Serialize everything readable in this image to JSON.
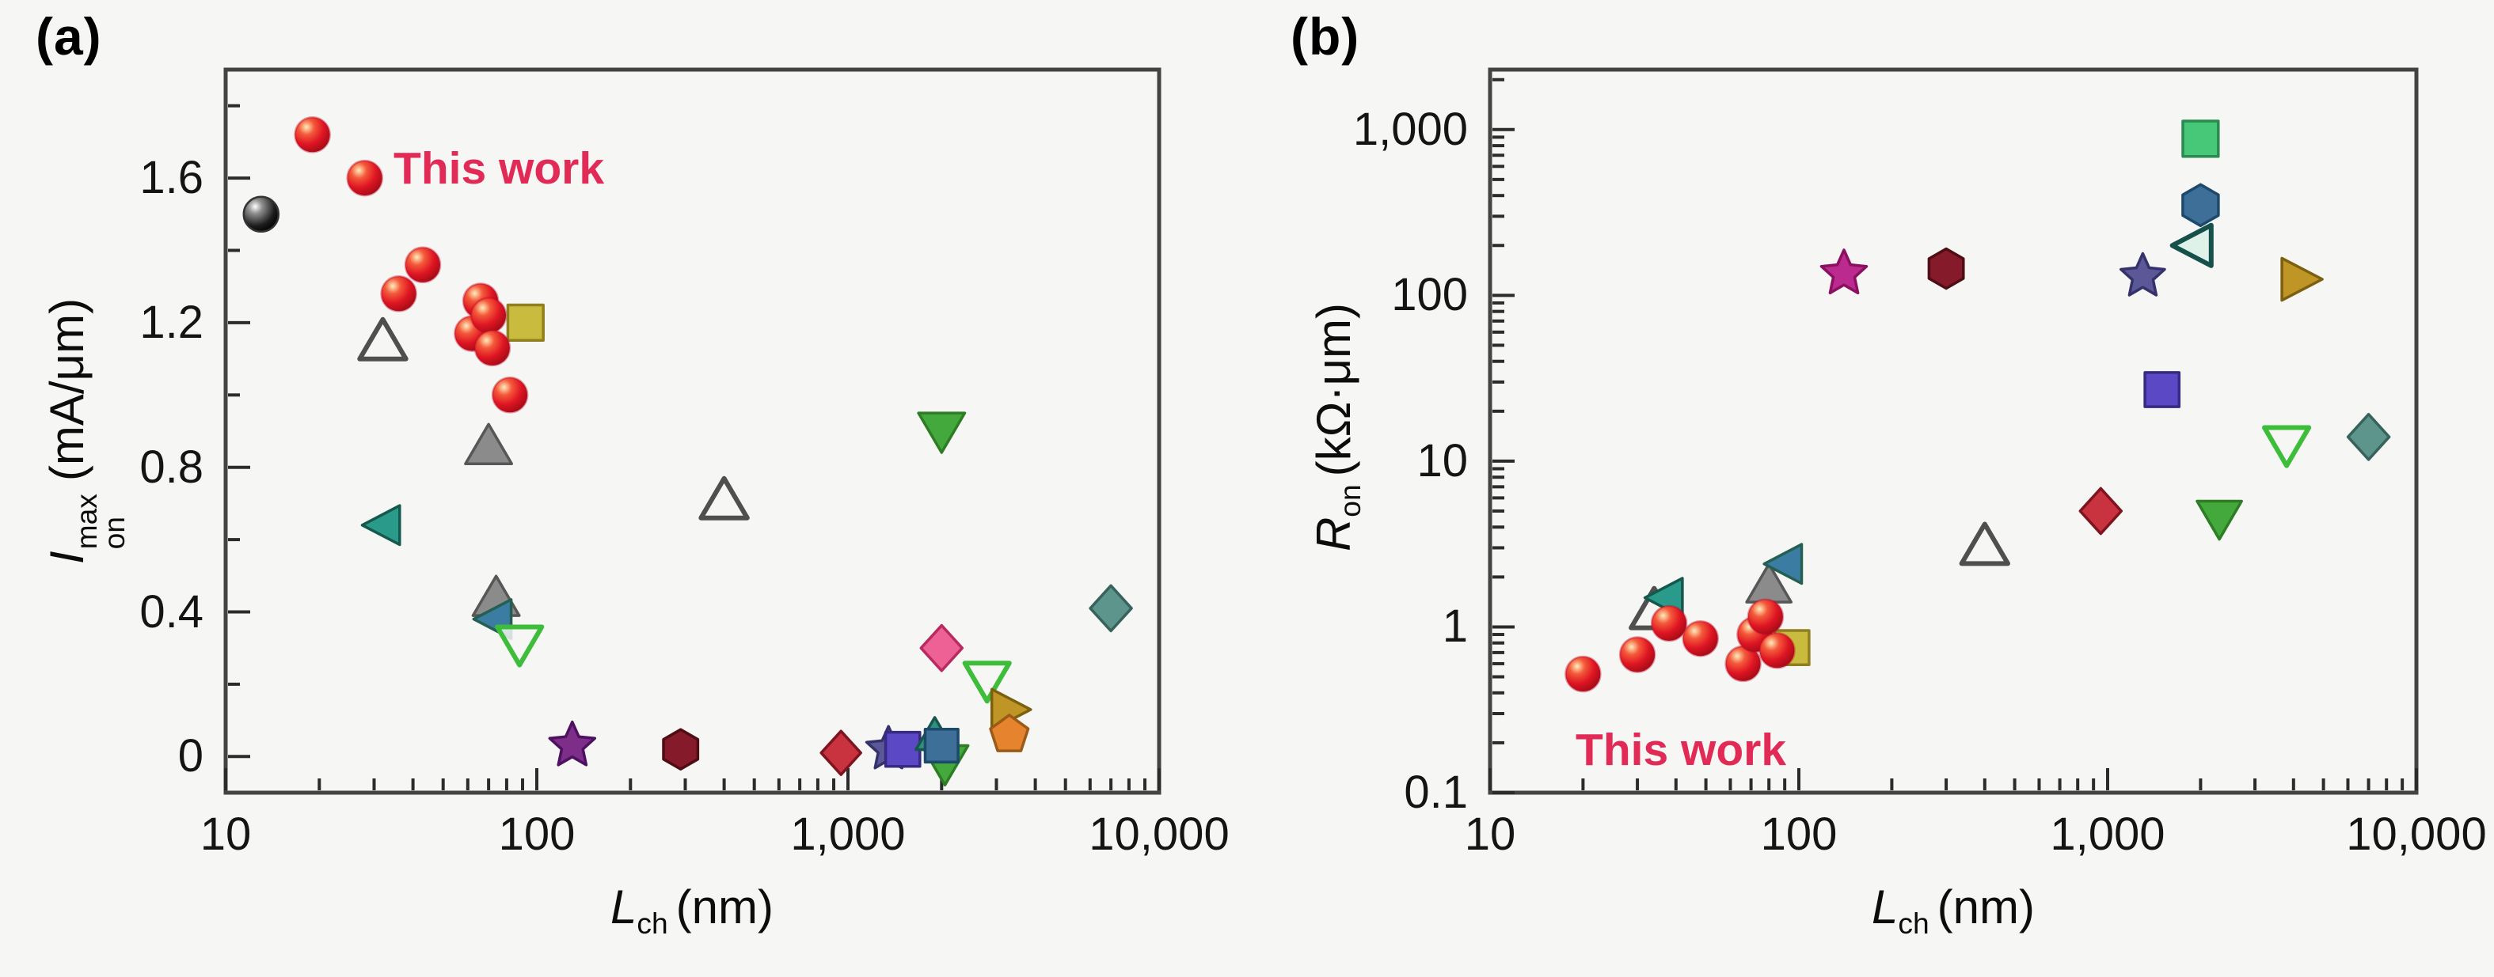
{
  "figure": {
    "background": "#f6f6f4",
    "frame_color": "#434343",
    "tick_color": "#2b2b2b",
    "text_color": "#111111",
    "annotation_color": "#e12a55"
  },
  "panels": [
    {
      "tag": "(a)",
      "annotation": "This work",
      "x_axis": {
        "symbol": "L",
        "subscript": "ch",
        "unit": "(nm)",
        "scale": "log",
        "ticks": [
          "10",
          "100",
          "1,000",
          "10,000"
        ],
        "tick_values": [
          10,
          100,
          1000,
          10000
        ]
      },
      "y_axis": {
        "symbol": "I",
        "superscript": "max",
        "subscript": "on",
        "unit": "(mA/μm)",
        "scale": "linear",
        "ticks": [
          "1.6",
          "1.2",
          "0.8",
          "0.4",
          "0"
        ],
        "tick_values": [
          1.6,
          1.2,
          0.8,
          0.4,
          0
        ],
        "minor_step": 0.2
      }
    },
    {
      "tag": "(b)",
      "annotation": "This work",
      "x_axis": {
        "symbol": "L",
        "subscript": "ch",
        "unit": "(nm)",
        "scale": "log",
        "ticks": [
          "10",
          "100",
          "1,000",
          "10,000"
        ],
        "tick_values": [
          10,
          100,
          1000,
          10000
        ]
      },
      "y_axis": {
        "symbol": "R",
        "superscript": "",
        "subscript": "on",
        "unit": "(kΩ·μm)",
        "scale": "log",
        "ticks": [
          "1,000",
          "100",
          "10",
          "1",
          "0.1"
        ],
        "tick_values": [
          1000,
          100,
          10,
          1,
          0.1
        ]
      }
    }
  ],
  "chart_data": [
    {
      "type": "scatter",
      "panel": "a",
      "title": "",
      "xlabel": "L_ch (nm)",
      "ylabel": "I_on^max (mA/μm)",
      "x_scale": "log",
      "x_range": [
        10,
        10000
      ],
      "y_scale": "linear",
      "y_range": [
        -0.1,
        1.9
      ],
      "grid": false,
      "legend": "none",
      "annotation": {
        "text": "This work",
        "x": 40,
        "y": 1.6
      },
      "series": [
        {
          "name": "reference-black-sphere",
          "marker": "circle",
          "fill": "gradient-black",
          "stroke": "#333333",
          "open": false,
          "size": 22,
          "points": [
            [
              13,
              1.5
            ]
          ]
        },
        {
          "name": "open-gray-triangle",
          "marker": "tri-up",
          "fill": "open",
          "stroke": "#4f4f4f",
          "open": true,
          "size": 27,
          "points": [
            [
              32,
              1.15
            ],
            [
              400,
              0.71
            ]
          ]
        },
        {
          "name": "gray-triangle",
          "marker": "tri-up",
          "fill": "#8b8b8b",
          "stroke": "#575757",
          "open": false,
          "size": 27,
          "points": [
            [
              70,
              0.86
            ],
            [
              74,
              0.44
            ]
          ]
        },
        {
          "name": "khaki-square",
          "marker": "square",
          "fill": "#c9bb3d",
          "stroke": "#8f7f1e",
          "open": false,
          "size": 28,
          "points": [
            [
              92,
              1.2
            ]
          ]
        },
        {
          "name": "teal-left-triangle",
          "marker": "tri-left",
          "fill": "#2a9a8a",
          "stroke": "#14594c",
          "open": false,
          "size": 26,
          "points": [
            [
              32,
              0.64
            ]
          ]
        },
        {
          "name": "steelblue-left-triangle",
          "marker": "tri-left",
          "fill": "#3b7da2",
          "stroke": "#245f52",
          "open": false,
          "size": 26,
          "points": [
            [
              73,
              0.38
            ]
          ]
        },
        {
          "name": "open-green-down-triangle",
          "marker": "tri-down",
          "fill": "open",
          "stroke": "#3dbd3a",
          "open": true,
          "size": 26,
          "points": [
            [
              88,
              0.31
            ],
            [
              2800,
              0.21
            ]
          ]
        },
        {
          "name": "purple-star",
          "marker": "star",
          "fill": "#7c2e88",
          "stroke": "#4e1060",
          "open": false,
          "size": 30,
          "points": [
            [
              130,
              0.03
            ]
          ]
        },
        {
          "name": "darkred-hexagon",
          "marker": "hexagon",
          "fill": "#851a2b",
          "stroke": "#4f0d14",
          "open": false,
          "size": 25,
          "points": [
            [
              290,
              0.02
            ]
          ]
        },
        {
          "name": "green-down-triangle",
          "marker": "tri-down",
          "fill": "#43a93d",
          "stroke": "#2e7d25",
          "open": false,
          "size": 27,
          "points": [
            [
              2000,
              0.9
            ],
            [
              2050,
              -0.02
            ]
          ]
        },
        {
          "name": "pink-diamond",
          "marker": "diamond",
          "fill": "#ee6195",
          "stroke": "#b82a60",
          "open": false,
          "size": 26,
          "points": [
            [
              2000,
              0.3
            ]
          ]
        },
        {
          "name": "teal-diamond",
          "marker": "diamond",
          "fill": "#5d948c",
          "stroke": "#37635c",
          "open": false,
          "size": 26,
          "points": [
            [
              7000,
              0.41
            ]
          ]
        },
        {
          "name": "olive-right-triangle",
          "marker": "tri-right",
          "fill": "#bf9626",
          "stroke": "#7d5f10",
          "open": false,
          "size": 27,
          "points": [
            [
              3300,
              0.13
            ]
          ]
        },
        {
          "name": "orange-pentagon",
          "marker": "pentagon",
          "fill": "#e5832f",
          "stroke": "#9c5a17",
          "open": false,
          "size": 25,
          "points": [
            [
              3300,
              0.06
            ]
          ]
        },
        {
          "name": "crimson-diamond",
          "marker": "diamond",
          "fill": "#c8333f",
          "stroke": "#7e1420",
          "open": false,
          "size": 25,
          "points": [
            [
              950,
              0.01
            ]
          ]
        },
        {
          "name": "slate-star",
          "marker": "star",
          "fill": "#5b5898",
          "stroke": "#35326b",
          "open": false,
          "size": 29,
          "points": [
            [
              1350,
              0.02
            ]
          ]
        },
        {
          "name": "blueviolet-square",
          "marker": "square",
          "fill": "#5b48c4",
          "stroke": "#372a82",
          "open": false,
          "size": 27,
          "points": [
            [
              1500,
              0.02
            ]
          ]
        },
        {
          "name": "teal-triangle-small",
          "marker": "tri-up",
          "fill": "#2f8f80",
          "stroke": "#17564c",
          "open": false,
          "size": 22,
          "points": [
            [
              1900,
              0.06
            ]
          ]
        },
        {
          "name": "steelblue-square",
          "marker": "square",
          "fill": "#3d6f99",
          "stroke": "#1d4a6b",
          "open": false,
          "size": 26,
          "points": [
            [
              2000,
              0.03
            ]
          ]
        },
        {
          "name": "This work",
          "marker": "circle",
          "fill": "gradient-red",
          "stroke": "rgba(190,10,40,0.4)",
          "open": false,
          "size": 22,
          "points": [
            [
              19,
              1.72
            ],
            [
              28,
              1.6
            ],
            [
              43,
              1.36
            ],
            [
              36,
              1.28
            ],
            [
              66,
              1.26
            ],
            [
              62,
              1.17
            ],
            [
              70,
              1.22
            ],
            [
              72,
              1.13
            ],
            [
              82,
              1.0
            ]
          ]
        }
      ]
    },
    {
      "type": "scatter",
      "panel": "b",
      "title": "",
      "xlabel": "L_ch (nm)",
      "ylabel": "R_on (kΩ·μm)",
      "x_scale": "log",
      "x_range": [
        10,
        10000
      ],
      "y_scale": "log",
      "y_range": [
        0.1,
        2300
      ],
      "grid": false,
      "legend": "none",
      "annotation": {
        "text": "This work",
        "x": 30,
        "y": 0.22
      },
      "series": [
        {
          "name": "open-gray-triangle",
          "marker": "tri-up",
          "fill": "open",
          "stroke": "#4f4f4f",
          "open": true,
          "size": 27,
          "points": [
            [
              34,
              1.27
            ],
            [
              400,
              3.1
            ]
          ]
        },
        {
          "name": "teal-left-triangle",
          "marker": "tri-left",
          "fill": "#2a9a8a",
          "stroke": "#14594c",
          "open": false,
          "size": 26,
          "points": [
            [
              37,
              1.5
            ]
          ]
        },
        {
          "name": "gray-triangle",
          "marker": "tri-up",
          "fill": "#8b8b8b",
          "stroke": "#575757",
          "open": false,
          "size": 26,
          "points": [
            [
              80,
              1.8
            ]
          ]
        },
        {
          "name": "steelblue-left-triangle",
          "marker": "tri-left",
          "fill": "#3b7da2",
          "stroke": "#245f52",
          "open": false,
          "size": 26,
          "points": [
            [
              90,
              2.4
            ]
          ]
        },
        {
          "name": "khaki-square",
          "marker": "square",
          "fill": "#c9bb3d",
          "stroke": "#8f7f1e",
          "open": false,
          "size": 27,
          "points": [
            [
              95,
              0.75
            ]
          ]
        },
        {
          "name": "magenta-star",
          "marker": "star",
          "fill": "#bb2a8e",
          "stroke": "#8c1060",
          "open": false,
          "size": 30,
          "points": [
            [
              140,
              135
            ]
          ]
        },
        {
          "name": "darkred-hexagon",
          "marker": "hexagon",
          "fill": "#851a2b",
          "stroke": "#4f0d14",
          "open": false,
          "size": 25,
          "points": [
            [
              300,
              145
            ]
          ]
        },
        {
          "name": "slate-star",
          "marker": "star",
          "fill": "#5b5898",
          "stroke": "#35326b",
          "open": false,
          "size": 29,
          "points": [
            [
              1300,
              130
            ]
          ]
        },
        {
          "name": "crimson-diamond",
          "marker": "diamond",
          "fill": "#c8333f",
          "stroke": "#7e1420",
          "open": false,
          "size": 26,
          "points": [
            [
              950,
              5
            ]
          ]
        },
        {
          "name": "green-square",
          "marker": "square",
          "fill": "#46c878",
          "stroke": "#2a8a4f",
          "open": false,
          "size": 28,
          "points": [
            [
              2000,
              880
            ]
          ]
        },
        {
          "name": "steelblue-hexagon",
          "marker": "hexagon",
          "fill": "#3d6f99",
          "stroke": "#1d4a6b",
          "open": false,
          "size": 26,
          "points": [
            [
              2000,
              350
            ]
          ]
        },
        {
          "name": "open-teal-left-triangle",
          "marker": "tri-left",
          "fill": "#dff2ea",
          "stroke": "#16504a",
          "open": true,
          "size": 27,
          "points": [
            [
              1900,
              200
            ]
          ]
        },
        {
          "name": "blueviolet-square",
          "marker": "square",
          "fill": "#5b48c4",
          "stroke": "#372a82",
          "open": false,
          "size": 27,
          "points": [
            [
              1500,
              27
            ]
          ]
        },
        {
          "name": "green-down-triangle",
          "marker": "tri-down",
          "fill": "#43a93d",
          "stroke": "#2e7d25",
          "open": false,
          "size": 26,
          "points": [
            [
              2300,
              4.5
            ]
          ]
        },
        {
          "name": "olive-right-triangle",
          "marker": "tri-right",
          "fill": "#bf9626",
          "stroke": "#7d5f10",
          "open": false,
          "size": 28,
          "points": [
            [
              4200,
              125
            ]
          ]
        },
        {
          "name": "open-green-down-triangle",
          "marker": "tri-down",
          "fill": "open",
          "stroke": "#3dbd3a",
          "open": true,
          "size": 26,
          "points": [
            [
              3800,
              12.5
            ]
          ]
        },
        {
          "name": "teal-diamond",
          "marker": "diamond",
          "fill": "#5d948c",
          "stroke": "#37635c",
          "open": false,
          "size": 26,
          "points": [
            [
              7000,
              14
            ]
          ]
        },
        {
          "name": "This work",
          "marker": "circle",
          "fill": "gradient-red",
          "stroke": "rgba(190,10,40,0.4)",
          "open": false,
          "size": 22,
          "points": [
            [
              20,
              0.52
            ],
            [
              30,
              0.68
            ],
            [
              38,
              1.05
            ],
            [
              48,
              0.85
            ],
            [
              66,
              0.6
            ],
            [
              72,
              0.9
            ],
            [
              78,
              1.15
            ],
            [
              85,
              0.72
            ]
          ]
        }
      ]
    }
  ]
}
